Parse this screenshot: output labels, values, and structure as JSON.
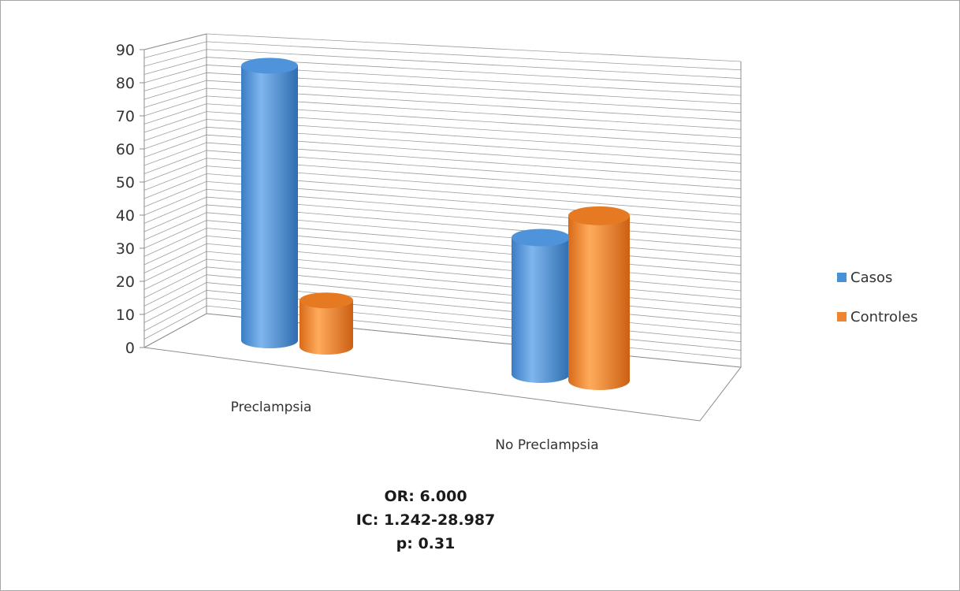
{
  "chart_data": {
    "type": "bar",
    "style": "3d-cylinder",
    "categories": [
      "Preclampsia",
      "No Preclampsia"
    ],
    "series": [
      {
        "name": "Casos",
        "values": [
          83,
          39
        ],
        "color": "#4a90d9"
      },
      {
        "name": "Controles",
        "values": [
          14,
          47
        ],
        "color": "#f0852f"
      }
    ],
    "yticks": [
      0,
      10,
      20,
      30,
      40,
      50,
      60,
      70,
      80,
      90
    ],
    "ylim": [
      0,
      90
    ],
    "grid": true,
    "legend": "right",
    "title": "",
    "xlabel": "",
    "ylabel": ""
  },
  "stats": {
    "or": "OR: 6.000",
    "ic": "IC: 1.242-28.987",
    "p": "p: 0.31"
  }
}
